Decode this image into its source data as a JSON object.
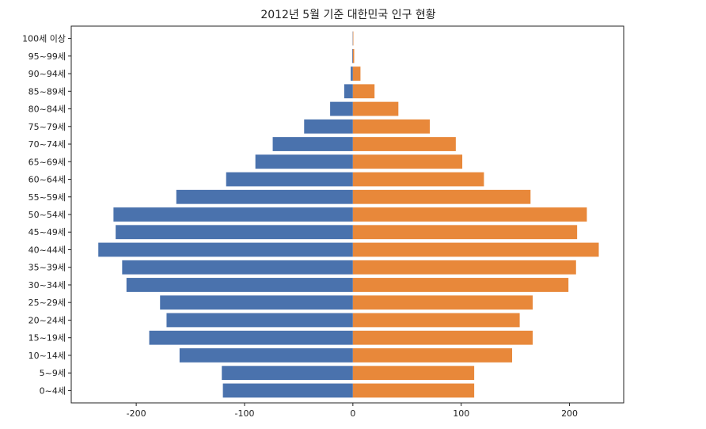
{
  "chart_data": {
    "type": "bar",
    "orientation": "horizontal",
    "title": "2012년 5월 기준 대한민국 인구 현황",
    "xlabel": "",
    "ylabel": "",
    "xlim": [
      -260,
      250
    ],
    "xticks": [
      -200,
      -100,
      0,
      100,
      200
    ],
    "xtick_labels": [
      "-200",
      "-100",
      "0",
      "100",
      "200"
    ],
    "grid": false,
    "legend": false,
    "categories": [
      "0~4세",
      "5~9세",
      "10~14세",
      "15~19세",
      "20~24세",
      "25~29세",
      "30~34세",
      "35~39세",
      "40~44세",
      "45~49세",
      "50~54세",
      "55~59세",
      "60~64세",
      "65~69세",
      "70~74세",
      "75~79세",
      "80~84세",
      "85~89세",
      "90~94세",
      "95~99세",
      "100세 이상"
    ],
    "series": [
      {
        "color": "#4a72ad",
        "values": [
          -120,
          -121,
          -160,
          -188,
          -172,
          -178,
          -209,
          -213,
          -235,
          -219,
          -221,
          -163,
          -117,
          -90,
          -74,
          -45,
          -21,
          -8,
          -2,
          -0.6,
          -0.2
        ]
      },
      {
        "color": "#e8883a",
        "values": [
          112,
          112,
          147,
          166,
          154,
          166,
          199,
          206,
          227,
          207,
          216,
          164,
          121,
          101,
          95,
          71,
          42,
          20,
          7,
          1.2,
          0.3
        ]
      }
    ]
  }
}
